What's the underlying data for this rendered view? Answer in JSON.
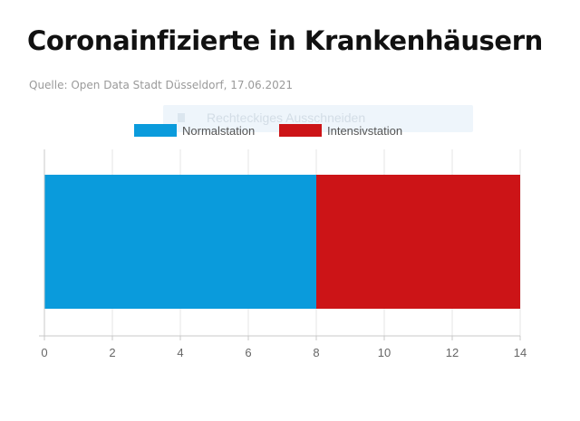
{
  "header": {
    "title": "Coronainfizierte in Krankenhäusern",
    "subtitle": "Quelle: Open Data Stadt Düsseldorf, 17.06.2021"
  },
  "overlay": {
    "ghost_text": "Rechteckiges Ausschneiden"
  },
  "chart_data": {
    "type": "bar",
    "orientation": "horizontal",
    "stacked": true,
    "categories": [
      ""
    ],
    "series": [
      {
        "name": "Normalstation",
        "values": [
          8
        ],
        "color": "#0a9bdc"
      },
      {
        "name": "Intensivstation",
        "values": [
          6
        ],
        "color": "#cc1417"
      }
    ],
    "title": "Coronainfizierte in Krankenhäusern",
    "subtitle": "Quelle: Open Data Stadt Düsseldorf, 17.06.2021",
    "xlabel": "",
    "ylabel": "",
    "xlim": [
      0,
      14
    ],
    "xticks": [
      0,
      2,
      4,
      6,
      8,
      10,
      12,
      14
    ],
    "grid": true,
    "legend": "top-center"
  }
}
